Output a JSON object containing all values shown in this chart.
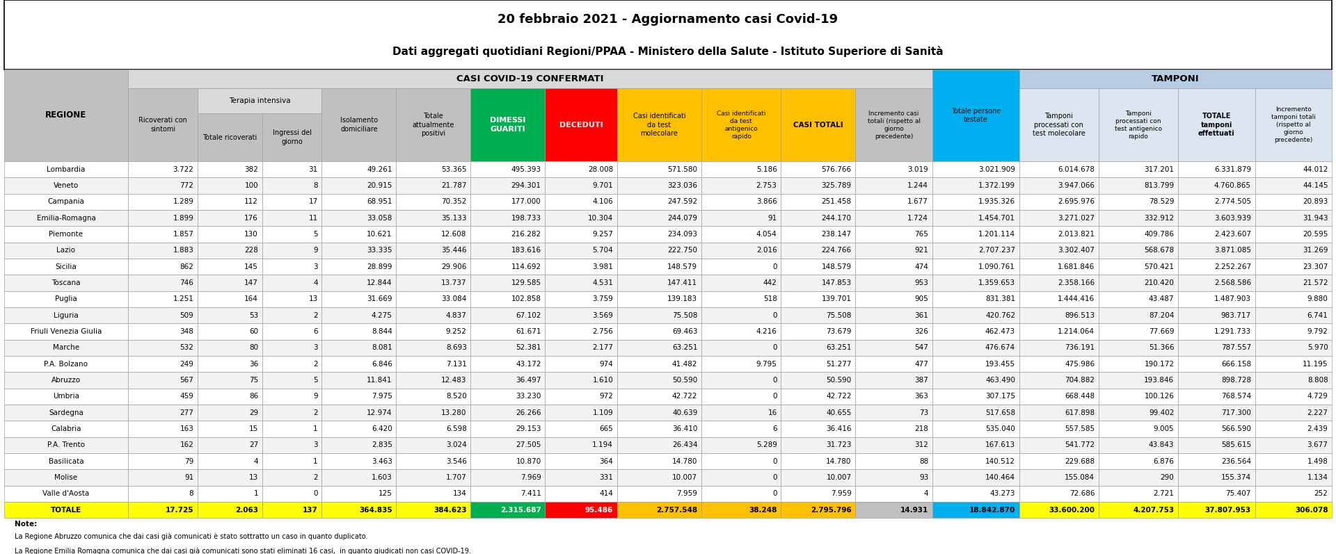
{
  "title1": "20 febbraio 2021 - Aggiornamento casi Covid-19",
  "title2": "Dati aggregati quotidiani Regioni/PPAA - Ministero della Salute - Istituto Superiore di Sanità",
  "note_label": "Note:",
  "note1": "La Regione Abruzzo comunica che dai casi già comunicati è stato sottratto un caso in quanto duplicato.",
  "note2": "La Regione Emilia Romagna comunica che dai casi già comunicati sono stati eliminati 16 casi,  in quanto giudicati non casi COVID-19.",
  "regions": [
    "Lombardia",
    "Veneto",
    "Campania",
    "Emilia-Romagna",
    "Piemonte",
    "Lazio",
    "Sicilia",
    "Toscana",
    "Puglia",
    "Liguria",
    "Friuli Venezia Giulia",
    "Marche",
    "P.A. Bolzano",
    "Abruzzo",
    "Umbria",
    "Sardegna",
    "Calabria",
    "P.A. Trento",
    "Basilicata",
    "Molise",
    "Valle d'Aosta",
    "TOTALE"
  ],
  "ricoverati_con_sintomi": [
    3722,
    772,
    1289,
    1899,
    1857,
    1883,
    862,
    746,
    1251,
    509,
    348,
    532,
    249,
    567,
    459,
    277,
    163,
    162,
    79,
    91,
    8,
    17725
  ],
  "totale_ricoverati": [
    382,
    100,
    112,
    176,
    130,
    228,
    145,
    147,
    164,
    53,
    60,
    80,
    36,
    75,
    86,
    29,
    15,
    27,
    4,
    13,
    1,
    2063
  ],
  "ingressi_del_giorno": [
    31,
    8,
    17,
    11,
    5,
    9,
    3,
    4,
    13,
    2,
    6,
    3,
    2,
    5,
    9,
    2,
    1,
    3,
    1,
    2,
    0,
    137
  ],
  "isolamento_domiciliare": [
    49261,
    20915,
    68951,
    33058,
    10621,
    33335,
    28899,
    12844,
    31669,
    4275,
    8844,
    8081,
    6846,
    11841,
    7975,
    12974,
    6420,
    2835,
    3463,
    1603,
    125,
    364835
  ],
  "totale_attualmente_positivi": [
    53365,
    21787,
    70352,
    35133,
    12608,
    35446,
    29906,
    13737,
    33084,
    4837,
    9252,
    8693,
    7131,
    12483,
    8520,
    13280,
    6598,
    3024,
    3546,
    1707,
    134,
    384623
  ],
  "dimessi_guariti": [
    495393,
    294301,
    177000,
    198733,
    216282,
    183616,
    114692,
    129585,
    102858,
    67102,
    61671,
    52381,
    43172,
    36497,
    33230,
    26266,
    29153,
    27505,
    10870,
    7969,
    7411,
    2315687
  ],
  "deceduti": [
    28008,
    9701,
    4106,
    10304,
    9257,
    5704,
    3981,
    4531,
    3759,
    3569,
    2756,
    2177,
    974,
    1610,
    972,
    1109,
    665,
    1194,
    364,
    331,
    414,
    95486
  ],
  "casi_identificati_molecolare": [
    571580,
    323036,
    247592,
    244079,
    234093,
    222750,
    148579,
    147411,
    139183,
    75508,
    69463,
    63251,
    41482,
    50590,
    42722,
    40639,
    36410,
    26434,
    14780,
    10007,
    7959,
    2757548
  ],
  "casi_identificati_antigenico": [
    5186,
    2753,
    3866,
    91,
    4054,
    2016,
    0,
    442,
    518,
    0,
    4216,
    0,
    9795,
    0,
    0,
    16,
    6,
    5289,
    0,
    0,
    0,
    38248
  ],
  "casi_totali": [
    576766,
    325789,
    251458,
    244170,
    238147,
    224766,
    148579,
    147853,
    139701,
    75508,
    73679,
    63251,
    51277,
    50590,
    42722,
    40655,
    36416,
    31723,
    14780,
    10007,
    7959,
    2795796
  ],
  "incremento_casi_totali": [
    3019,
    1244,
    1677,
    1724,
    765,
    921,
    474,
    953,
    905,
    361,
    326,
    547,
    477,
    387,
    363,
    73,
    218,
    312,
    88,
    93,
    4,
    14931
  ],
  "totale_persone_testate": [
    3021909,
    1372199,
    1935326,
    1454701,
    1201114,
    2707237,
    1090761,
    1359653,
    831381,
    420762,
    462473,
    476674,
    193455,
    463490,
    307175,
    517658,
    535040,
    167613,
    140512,
    140464,
    43273,
    18842870
  ],
  "tamponi_molecolare": [
    6014678,
    3947066,
    2695976,
    3271027,
    2013821,
    3302407,
    1681846,
    2358166,
    1444416,
    896513,
    1214064,
    736191,
    475986,
    704882,
    668448,
    617898,
    557585,
    541772,
    229688,
    155084,
    72686,
    33600200
  ],
  "tamponi_antigenico": [
    317201,
    813799,
    78529,
    332912,
    409786,
    568678,
    570421,
    210420,
    43487,
    87204,
    77669,
    51366,
    190172,
    193846,
    100126,
    99402,
    9005,
    43843,
    6876,
    290,
    2721,
    4207753
  ],
  "totale_tamponi": [
    6331879,
    4760865,
    2774505,
    3603939,
    2423607,
    3871085,
    2252267,
    2568586,
    1487903,
    983717,
    1291733,
    787557,
    666158,
    898728,
    768574,
    717300,
    566590,
    585615,
    236564,
    155374,
    75407,
    37807953
  ],
  "incremento_tamponi": [
    44012,
    44145,
    20893,
    31943,
    20595,
    31269,
    23307,
    21572,
    9880,
    6741,
    9792,
    5970,
    11195,
    8808,
    4729,
    2227,
    2439,
    3677,
    1498,
    1134,
    252,
    306078
  ],
  "gray_bg": "#c0c0c0",
  "lt_gray_bg": "#d9d9d9",
  "tamponi_hdr_bg": "#b8cce4",
  "lt_tamp_bg": "#dce6f1",
  "green_bg": "#00b050",
  "red_bg": "#ff0000",
  "yellow_bg": "#ffc000",
  "cyan_bg": "#00b0f0",
  "white_bg": "#ffffff",
  "alt_row_bg": "#f2f2f2",
  "totale_row_bg": "#ffff00",
  "border_color": "#a0a0a0"
}
